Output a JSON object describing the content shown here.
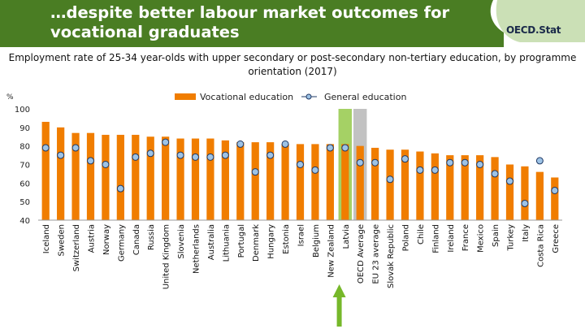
{
  "title": "…despite better labour market outcomes for vocational graduates",
  "logo": "OECD.Stat",
  "colors": {
    "header": "#4a7d23",
    "bar": "#f07d00",
    "marker": "#9dc3e6",
    "highlight_green": "#8ec63f",
    "highlight_grey": "#b3b3b3",
    "arrow": "#76b82a"
  },
  "chart_data": {
    "type": "bar",
    "title": "Employment rate of 25-34 year-olds with upper secondary or post-secondary non-tertiary education, by programme orientation (2017)",
    "ylabel": "%",
    "ylim": [
      40,
      100
    ],
    "yticks": [
      40,
      50,
      60,
      70,
      80,
      90,
      100
    ],
    "grid": false,
    "legend_position": "top",
    "highlighted": [
      "Latvia",
      "OECD Average"
    ],
    "arrow_category": "New Zealand",
    "categories": [
      "Iceland",
      "Sweden",
      "Switzerland",
      "Austria",
      "Norway",
      "Germany",
      "Canada",
      "Russia",
      "United Kingdom",
      "Slovenia",
      "Netherlands",
      "Australia",
      "Lithuania",
      "Portugal",
      "Denmark",
      "Hungary",
      "Estonia",
      "Israel",
      "Belgium",
      "New Zealand",
      "Latvia",
      "OECD Average",
      "EU 23 average",
      "Slovak Republic",
      "Poland",
      "Chile",
      "Finland",
      "Ireland",
      "France",
      "Mexico",
      "Spain",
      "Turkey",
      "Italy",
      "Costa Rica",
      "Greece"
    ],
    "series": [
      {
        "name": "Vocational education",
        "type": "bar",
        "values": [
          93,
          90,
          87,
          87,
          86,
          86,
          86,
          85,
          85,
          84,
          84,
          84,
          83,
          82,
          82,
          82,
          81,
          81,
          81,
          81,
          81,
          80,
          79,
          78,
          78,
          77,
          76,
          75,
          75,
          75,
          74,
          70,
          69,
          66,
          63
        ]
      },
      {
        "name": "General education",
        "type": "marker",
        "values": [
          79,
          75,
          79,
          72,
          70,
          57,
          74,
          76,
          82,
          75,
          74,
          74,
          75,
          81,
          66,
          75,
          81,
          70,
          67,
          79,
          79,
          71,
          71,
          62,
          73,
          67,
          67,
          71,
          71,
          70,
          65,
          61,
          49,
          72,
          56
        ]
      }
    ]
  }
}
